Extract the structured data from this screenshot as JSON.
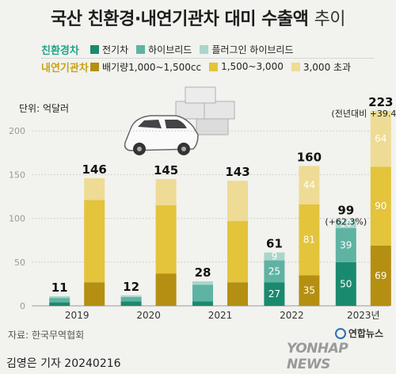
{
  "title": {
    "main": "국산 친환경·내연기관차 대미 수출액",
    "suffix": "추이"
  },
  "legend": {
    "groups": [
      {
        "name": "친환경차",
        "color": "#1fa58a",
        "items": [
          {
            "label": "전기차",
            "color": "#1a8a6e"
          },
          {
            "label": "하이브리드",
            "color": "#5fb3a3"
          },
          {
            "label": "플러그인 하이브리드",
            "color": "#a9d6cb"
          }
        ]
      },
      {
        "name": "내연기관차",
        "color": "#c9a216",
        "items": [
          {
            "label": "배기량1,000~1,500cc",
            "color": "#b58f12"
          },
          {
            "label": "1,500~3,000",
            "color": "#e3c43a"
          },
          {
            "label": "3,000 초과",
            "color": "#eedb95"
          }
        ]
      }
    ]
  },
  "unit_label": "단위: 억달러",
  "source": "자료: 한국무역협회",
  "author": "김영은 기자  20240216",
  "logo": {
    "small": "연합뉴스",
    "big": "YONHAP NEWS"
  },
  "chart_data": {
    "type": "bar",
    "stacked": true,
    "categories": [
      "2019",
      "2020",
      "2021",
      "2022",
      "2023년"
    ],
    "ylim": [
      0,
      250
    ],
    "yticks": [
      0,
      50,
      100,
      150,
      200
    ],
    "grid": true,
    "groups": [
      {
        "name": "친환경차",
        "series": [
          {
            "name": "전기차",
            "color": "#1a8a6e",
            "values": [
              4,
              5,
              5,
              27,
              50
            ]
          },
          {
            "name": "하이브리드",
            "color": "#5fb3a3",
            "values": [
              5,
              5,
              19,
              25,
              39
            ]
          },
          {
            "name": "플러그인 하이브리드",
            "color": "#a9d6cb",
            "values": [
              2,
              2,
              4,
              9,
              10
            ]
          }
        ],
        "totals": [
          11,
          12,
          28,
          61,
          99
        ]
      },
      {
        "name": "내연기관차",
        "series": [
          {
            "name": "배기량1,000~1,500cc",
            "color": "#b58f12",
            "values": [
              27,
              37,
              27,
              35,
              69
            ]
          },
          {
            "name": "1,500~3,000",
            "color": "#e3c43a",
            "values": [
              94,
              78,
              70,
              81,
              90
            ]
          },
          {
            "name": "3,000 초과",
            "color": "#eedb95",
            "values": [
              25,
              30,
              46,
              44,
              64
            ]
          }
        ],
        "totals": [
          146,
          145,
          143,
          160,
          223
        ]
      }
    ],
    "segment_labels": {
      "친환경차": {
        "2022": [
          27,
          25,
          9
        ],
        "2023년": [
          50,
          39,
          10
        ]
      },
      "내연기관차": {
        "2022": [
          35,
          81,
          44
        ],
        "2023년": [
          69,
          90,
          64
        ]
      }
    },
    "annotations": [
      {
        "category": "2023년",
        "group": "친환경차",
        "text": "(+62.3%)"
      },
      {
        "category": "2023년",
        "group": "내연기관차",
        "text": "(전년대비 +39.4%)"
      }
    ]
  }
}
